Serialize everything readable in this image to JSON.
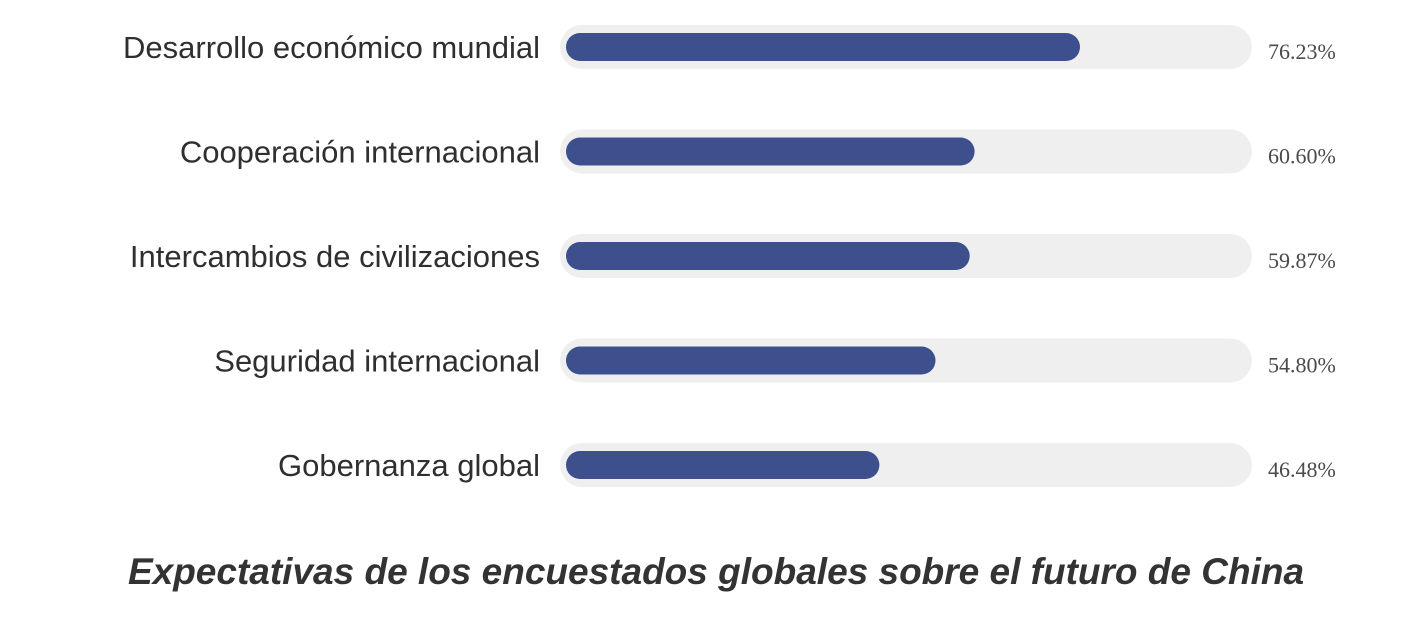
{
  "chart_data": {
    "type": "bar",
    "orientation": "horizontal",
    "title": "Expectativas de los encuestados globales sobre el futuro de China",
    "categories": [
      "Desarrollo económico mundial",
      "Cooperación internacional",
      "Intercambios de civilizaciones",
      "Seguridad internacional",
      "Gobernanza global"
    ],
    "values": [
      76.23,
      60.6,
      59.87,
      54.8,
      46.48
    ],
    "value_labels": [
      "76.23%",
      "60.60%",
      "59.87%",
      "54.80%",
      "46.48%"
    ],
    "unit": "%",
    "xlim": [
      0,
      100
    ],
    "grid": false,
    "legend": "none",
    "colors": {
      "bar": "#3d4f8c",
      "track": "#efefef"
    }
  }
}
